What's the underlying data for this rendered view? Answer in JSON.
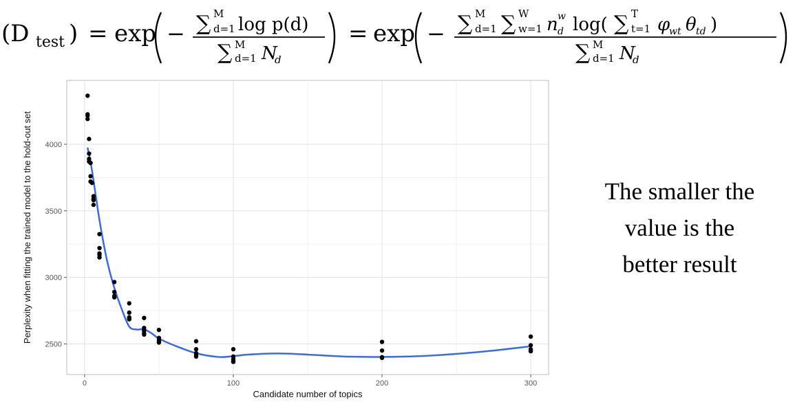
{
  "formula": {
    "lhs": "(D",
    "lhs_sub": "test",
    "lhs_close": ")",
    "eq1": "=",
    "exp1": "exp",
    "num1_sum_sup": "M",
    "num1_sum_sub": "d=1",
    "num1_body": "log p(d)",
    "den1_sum_sup": "M",
    "den1_sum_sub": "d=1",
    "den1_body": "N",
    "den1_body_sub": "d",
    "eq2": "=",
    "exp2": "exp",
    "num2_sum1_sup": "M",
    "num2_sum1_sub": "d=1",
    "num2_sum2_sup": "W",
    "num2_sum2_sub": "w=1",
    "num2_n": "n",
    "num2_n_sup": "w",
    "num2_n_sub": "d",
    "num2_log": "log(",
    "num2_inner_sum_sup": "T",
    "num2_inner_sum_sub": "t=1",
    "num2_phi": "φ",
    "num2_phi_sub": "wt",
    "num2_theta": "θ",
    "num2_theta_sub": "td",
    "num2_close": ")",
    "den2_sum_sup": "M",
    "den2_sum_sub": "d=1",
    "den2_body": "N",
    "den2_body_sub": "d",
    "minus": "−",
    "sigma": "∑"
  },
  "note": {
    "line1": "The smaller the",
    "line2": "value is the",
    "line3": "better result"
  },
  "chart_data": {
    "type": "scatter",
    "xlabel": "Candidate number of topics",
    "ylabel": "Perplexity when fitting the trained model to the hold-out set",
    "xlim": [
      -12,
      312
    ],
    "ylim": [
      2270,
      4480
    ],
    "xticks": [
      0,
      100,
      200,
      300
    ],
    "yticks": [
      2500,
      3000,
      3500,
      4000
    ],
    "grid": true,
    "point_color": "#000000",
    "line_color": "#3b6ae6",
    "points": [
      [
        2,
        4365
      ],
      [
        2,
        4225
      ],
      [
        2,
        4215
      ],
      [
        2,
        4190
      ],
      [
        3,
        4040
      ],
      [
        3,
        3930
      ],
      [
        3,
        3890
      ],
      [
        3,
        3870
      ],
      [
        4,
        3860
      ],
      [
        4,
        3760
      ],
      [
        4,
        3720
      ],
      [
        5,
        3710
      ],
      [
        6,
        3610
      ],
      [
        6,
        3590
      ],
      [
        6,
        3580
      ],
      [
        6,
        3545
      ],
      [
        10,
        3325
      ],
      [
        10,
        3220
      ],
      [
        10,
        3180
      ],
      [
        10,
        3170
      ],
      [
        10,
        3150
      ],
      [
        20,
        2965
      ],
      [
        20,
        2890
      ],
      [
        20,
        2860
      ],
      [
        20,
        2850
      ],
      [
        30,
        2805
      ],
      [
        30,
        2735
      ],
      [
        30,
        2700
      ],
      [
        30,
        2690
      ],
      [
        30,
        2685
      ],
      [
        40,
        2695
      ],
      [
        40,
        2620
      ],
      [
        40,
        2600
      ],
      [
        40,
        2580
      ],
      [
        40,
        2570
      ],
      [
        50,
        2605
      ],
      [
        50,
        2545
      ],
      [
        50,
        2530
      ],
      [
        50,
        2515
      ],
      [
        50,
        2510
      ],
      [
        75,
        2520
      ],
      [
        75,
        2460
      ],
      [
        75,
        2430
      ],
      [
        75,
        2415
      ],
      [
        75,
        2405
      ],
      [
        100,
        2460
      ],
      [
        100,
        2405
      ],
      [
        100,
        2385
      ],
      [
        100,
        2370
      ],
      [
        100,
        2365
      ],
      [
        200,
        2515
      ],
      [
        200,
        2450
      ],
      [
        200,
        2400
      ],
      [
        200,
        2395
      ],
      [
        300,
        2555
      ],
      [
        300,
        2490
      ],
      [
        300,
        2460
      ],
      [
        300,
        2450
      ],
      [
        300,
        2445
      ]
    ],
    "smooth_line": [
      [
        2,
        3975
      ],
      [
        5,
        3800
      ],
      [
        10,
        3430
      ],
      [
        15,
        3130
      ],
      [
        20,
        2920
      ],
      [
        25,
        2760
      ],
      [
        30,
        2630
      ],
      [
        35,
        2608
      ],
      [
        40,
        2610
      ],
      [
        45,
        2580
      ],
      [
        50,
        2540
      ],
      [
        60,
        2490
      ],
      [
        75,
        2430
      ],
      [
        90,
        2402
      ],
      [
        100,
        2408
      ],
      [
        110,
        2420
      ],
      [
        130,
        2428
      ],
      [
        150,
        2420
      ],
      [
        175,
        2405
      ],
      [
        200,
        2402
      ],
      [
        225,
        2408
      ],
      [
        250,
        2425
      ],
      [
        275,
        2450
      ],
      [
        300,
        2482
      ]
    ]
  }
}
